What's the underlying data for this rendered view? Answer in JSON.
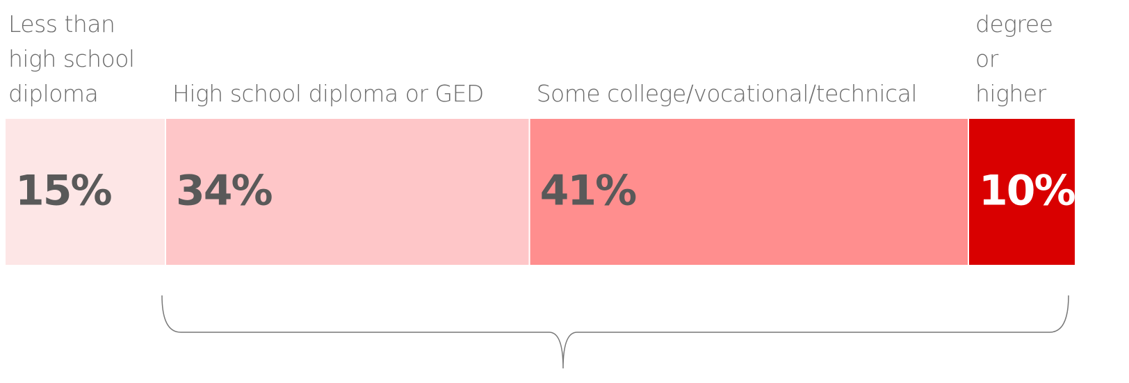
{
  "chart_data": {
    "type": "stacked_bar",
    "categories": [
      "Less than high school diploma",
      "High school diploma or GED",
      "Some college/vocational/technical",
      "Bachelor’s degree or higher"
    ],
    "values": [
      15,
      34,
      41,
      10
    ],
    "value_labels": [
      "15%",
      "34%",
      "41%",
      "10%"
    ],
    "colors": [
      "#fde6e6",
      "#fec6c8",
      "#ff8e8e",
      "#d90000"
    ],
    "xlim": [
      0,
      100
    ]
  }
}
